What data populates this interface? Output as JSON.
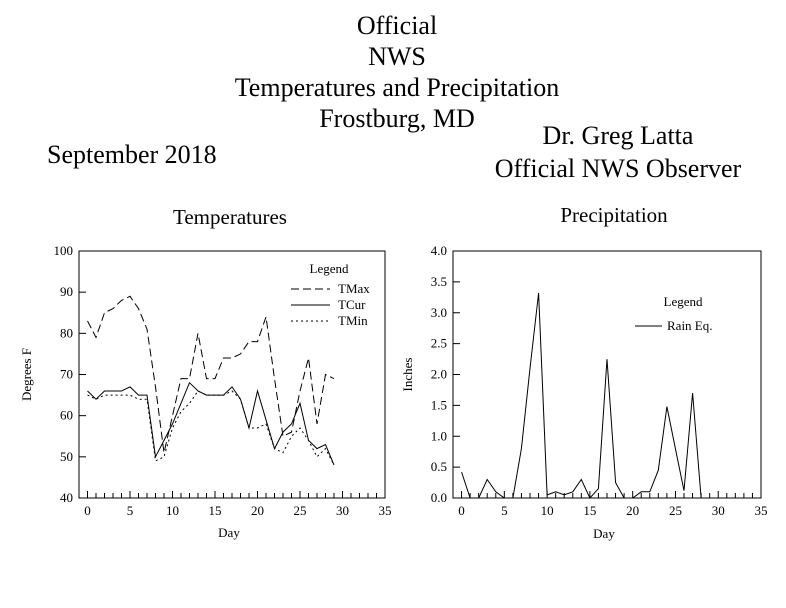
{
  "header": {
    "title_lines": [
      "Official",
      "NWS",
      "Temperatures and Precipitation",
      "Frostburg, MD"
    ],
    "period": "September 2018",
    "observer_name": "Dr. Greg Latta",
    "observer_role": "Official NWS Observer"
  },
  "chart_data": [
    {
      "type": "line",
      "title": "Temperatures",
      "xlabel": "Day",
      "ylabel": "Degrees F",
      "xlim": [
        -1,
        35
      ],
      "ylim": [
        40,
        100
      ],
      "xticks": [
        0,
        5,
        10,
        15,
        20,
        25,
        30,
        35
      ],
      "yticks": [
        40,
        50,
        60,
        70,
        80,
        90,
        100
      ],
      "grid": false,
      "legend": {
        "title": "Legend",
        "placement": "top-right"
      },
      "series": [
        {
          "name": "TMax",
          "style": "dashed",
          "x": [
            0,
            1,
            2,
            3,
            4,
            5,
            6,
            7,
            8,
            9,
            10,
            11,
            12,
            13,
            14,
            15,
            16,
            17,
            18,
            19,
            20,
            21,
            22,
            23,
            24,
            25,
            26,
            27,
            28,
            29
          ],
          "values": [
            83,
            79,
            85,
            86,
            88,
            89,
            86,
            81,
            67,
            51,
            60,
            69,
            69,
            80,
            69,
            69,
            74,
            74,
            75,
            78,
            78,
            84,
            69,
            55,
            56,
            66,
            74,
            58,
            70,
            69
          ]
        },
        {
          "name": "TCur",
          "style": "solid",
          "x": [
            0,
            1,
            2,
            3,
            4,
            5,
            6,
            7,
            8,
            9,
            10,
            11,
            12,
            13,
            14,
            15,
            16,
            17,
            18,
            19,
            20,
            21,
            22,
            23,
            24,
            25,
            26,
            27,
            28,
            29
          ],
          "values": [
            66,
            64,
            66,
            66,
            66,
            67,
            65,
            65,
            50,
            54,
            58,
            63,
            68,
            66,
            65,
            65,
            65,
            67,
            64,
            57,
            66,
            59,
            52,
            56,
            58,
            63,
            54,
            52,
            53,
            48
          ]
        },
        {
          "name": "TMin",
          "style": "dotted",
          "x": [
            0,
            1,
            2,
            3,
            4,
            5,
            6,
            7,
            8,
            9,
            10,
            11,
            12,
            13,
            14,
            15,
            16,
            17,
            18,
            19,
            20,
            21,
            22,
            23,
            24,
            25,
            26,
            27,
            28,
            29
          ],
          "values": [
            65,
            64,
            65,
            65,
            65,
            65,
            64,
            64,
            49,
            50,
            57,
            61,
            63,
            66,
            65,
            65,
            65,
            66,
            64,
            57,
            57,
            58,
            52,
            51,
            55,
            57,
            54,
            50,
            52,
            48
          ]
        }
      ]
    },
    {
      "type": "line",
      "title": "Precipitation",
      "xlabel": "Day",
      "ylabel": "Inches",
      "xlim": [
        -1,
        35
      ],
      "ylim": [
        0.0,
        4.0
      ],
      "xticks": [
        0,
        5,
        10,
        15,
        20,
        25,
        30,
        35
      ],
      "yticks": [
        "0.0",
        "0.5",
        "1.0",
        "1.5",
        "2.0",
        "2.5",
        "3.0",
        "3.5",
        "4.0"
      ],
      "grid": false,
      "legend": {
        "title": "Legend",
        "placement": "top-right"
      },
      "series": [
        {
          "name": "Rain Eq.",
          "style": "solid",
          "x": [
            0,
            1,
            2,
            3,
            4,
            5,
            6,
            7,
            8,
            9,
            10,
            11,
            12,
            13,
            14,
            15,
            16,
            17,
            18,
            19,
            20,
            21,
            22,
            23,
            24,
            25,
            26,
            27,
            28,
            29
          ],
          "values": [
            0.42,
            0.0,
            0.0,
            0.3,
            0.1,
            0.0,
            0.0,
            0.8,
            2.1,
            3.32,
            0.05,
            0.1,
            0.05,
            0.1,
            0.3,
            0.0,
            0.15,
            2.25,
            0.25,
            0.0,
            0.0,
            0.1,
            0.1,
            0.45,
            1.48,
            0.8,
            0.12,
            1.7,
            0.0,
            0.0
          ]
        }
      ]
    }
  ]
}
